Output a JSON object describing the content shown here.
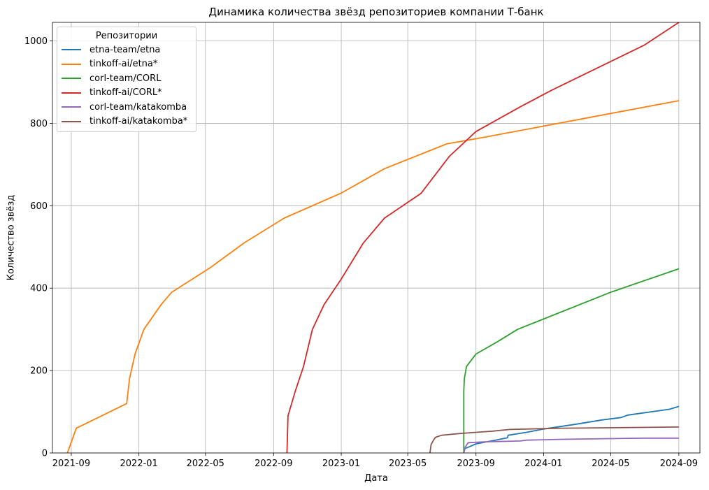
{
  "chart_data": {
    "type": "line",
    "title": "Динамика количества звёзд репозиториев компании Т-банк",
    "xlabel": "Дата",
    "ylabel": "Количество звёзд",
    "legend_title": "Репозитории",
    "legend_position": "top-left",
    "grid": true,
    "xlim": [
      "2021-07-29",
      "2024-10-09"
    ],
    "ylim": [
      0,
      1045
    ],
    "x_ticks": [
      "2021-09",
      "2022-01",
      "2022-05",
      "2022-09",
      "2023-01",
      "2023-05",
      "2023-09",
      "2024-01",
      "2024-05",
      "2024-09"
    ],
    "y_ticks": [
      0,
      200,
      400,
      600,
      800,
      1000
    ],
    "series": [
      {
        "name": "etna-team/etna",
        "color": "#1f77b4",
        "points": [
          [
            "2023-08-11",
            10
          ],
          [
            "2023-08-20",
            15
          ],
          [
            "2023-09-01",
            22
          ],
          [
            "2023-09-20",
            27
          ],
          [
            "2023-10-10",
            32
          ],
          [
            "2023-10-28",
            37
          ],
          [
            "2023-10-29",
            43
          ],
          [
            "2023-12-01",
            50
          ],
          [
            "2024-01-01",
            58
          ],
          [
            "2024-03-01",
            70
          ],
          [
            "2024-04-15",
            80
          ],
          [
            "2024-05-20",
            86
          ],
          [
            "2024-06-01",
            92
          ],
          [
            "2024-08-15",
            106
          ],
          [
            "2024-09-01",
            113
          ]
        ]
      },
      {
        "name": "tinkoff-ai/etna*",
        "color": "#ff7f0e",
        "points": [
          [
            "2021-08-25",
            0
          ],
          [
            "2021-09-10",
            60
          ],
          [
            "2021-12-10",
            120
          ],
          [
            "2021-12-15",
            180
          ],
          [
            "2021-12-25",
            240
          ],
          [
            "2022-01-10",
            300
          ],
          [
            "2022-02-10",
            360
          ],
          [
            "2022-03-01",
            390
          ],
          [
            "2022-05-10",
            450
          ],
          [
            "2022-07-10",
            510
          ],
          [
            "2022-09-20",
            570
          ],
          [
            "2022-12-31",
            630
          ],
          [
            "2023-03-20",
            690
          ],
          [
            "2023-07-10",
            750
          ],
          [
            "2023-09-15",
            766
          ],
          [
            "2024-09-01",
            855
          ]
        ]
      },
      {
        "name": "corl-team/CORL",
        "color": "#2ca02c",
        "points": [
          [
            "2023-08-10",
            0
          ],
          [
            "2023-08-10",
            150
          ],
          [
            "2023-08-11",
            180
          ],
          [
            "2023-08-15",
            210
          ],
          [
            "2023-09-01",
            240
          ],
          [
            "2023-10-10",
            270
          ],
          [
            "2023-11-15",
            300
          ],
          [
            "2024-05-01",
            390
          ],
          [
            "2024-09-01",
            447
          ]
        ]
      },
      {
        "name": "tinkoff-ai/CORL*",
        "color": "#d62728",
        "points": [
          [
            "2022-09-25",
            0
          ],
          [
            "2022-09-27",
            90
          ],
          [
            "2022-10-10",
            150
          ],
          [
            "2022-10-25",
            210
          ],
          [
            "2022-11-10",
            300
          ],
          [
            "2022-12-01",
            360
          ],
          [
            "2022-12-31",
            420
          ],
          [
            "2023-02-10",
            510
          ],
          [
            "2023-03-20",
            570
          ],
          [
            "2023-05-25",
            630
          ],
          [
            "2023-07-15",
            720
          ],
          [
            "2023-09-01",
            780
          ],
          [
            "2023-11-20",
            840
          ],
          [
            "2024-01-15",
            880
          ],
          [
            "2024-07-01",
            990
          ],
          [
            "2024-09-01",
            1045
          ]
        ]
      },
      {
        "name": "corl-team/katakomba",
        "color": "#9467bd",
        "points": [
          [
            "2023-08-10",
            0
          ],
          [
            "2023-08-11",
            5
          ],
          [
            "2023-08-13",
            15
          ],
          [
            "2023-08-18",
            25
          ],
          [
            "2023-09-15",
            27
          ],
          [
            "2023-11-20",
            29
          ],
          [
            "2023-12-01",
            31
          ],
          [
            "2024-02-01",
            33
          ],
          [
            "2024-07-01",
            36
          ],
          [
            "2024-09-01",
            36
          ]
        ]
      },
      {
        "name": "tinkoff-ai/katakomba*",
        "color": "#8c564b",
        "points": [
          [
            "2023-06-10",
            0
          ],
          [
            "2023-06-12",
            20
          ],
          [
            "2023-06-16",
            30
          ],
          [
            "2023-06-20",
            38
          ],
          [
            "2023-07-01",
            43
          ],
          [
            "2023-08-01",
            47
          ],
          [
            "2023-09-01",
            50
          ],
          [
            "2023-10-01",
            53
          ],
          [
            "2023-11-01",
            57
          ],
          [
            "2024-02-01",
            60
          ],
          [
            "2024-09-01",
            63
          ]
        ]
      }
    ]
  }
}
